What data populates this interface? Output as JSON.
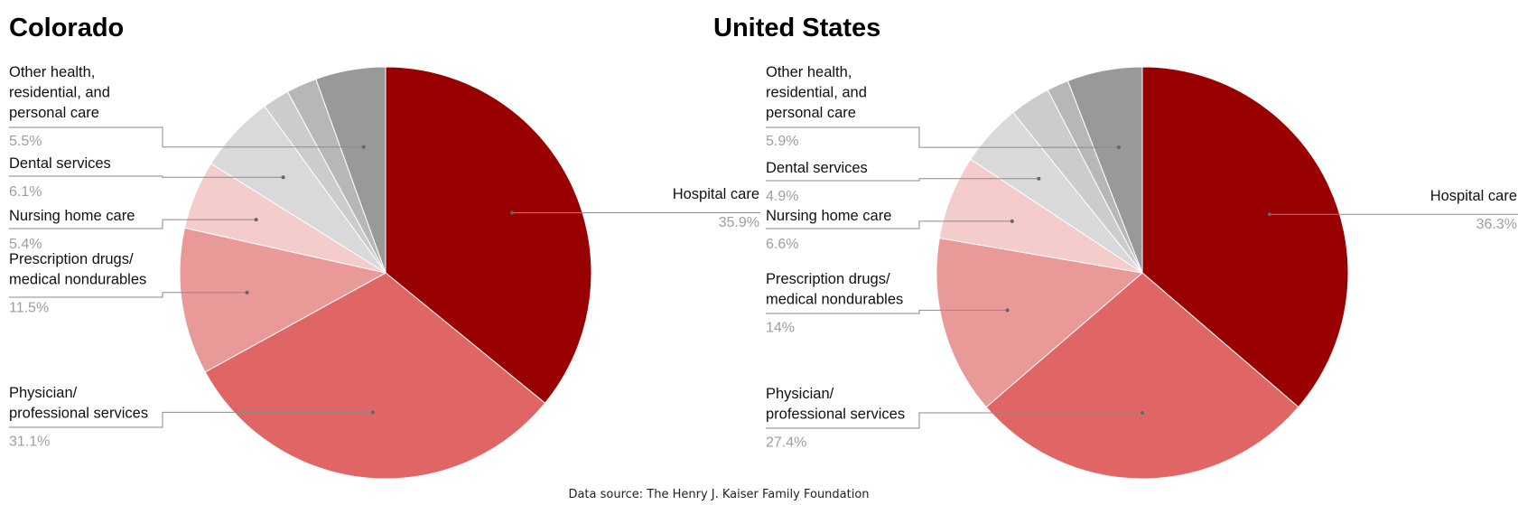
{
  "chart_data": [
    {
      "type": "pie",
      "title": "Colorado",
      "slices": [
        {
          "label": "Hospital care",
          "value": 35.9,
          "value_label": "35.9%",
          "color": "#990000"
        },
        {
          "label": "Physician/ professional services",
          "value": 31.1,
          "value_label": "31.1%",
          "color": "#e06666"
        },
        {
          "label": "Prescription drugs/ medical nondurables",
          "value": 11.5,
          "value_label": "11.5%",
          "color": "#ea9999"
        },
        {
          "label": "Nursing home care",
          "value": 5.4,
          "value_label": "5.4%",
          "color": "#f4cccc"
        },
        {
          "label": "Dental services",
          "value": 6.1,
          "value_label": "6.1%",
          "color": "#d9d9d9"
        },
        {
          "label": "",
          "value": 2.1,
          "color": "#cccccc"
        },
        {
          "label": "",
          "value": 2.4,
          "color": "#b7b7b7"
        },
        {
          "label": "Other health, residential, and personal care",
          "value": 5.5,
          "value_label": "5.5%",
          "color": "#999999"
        }
      ]
    },
    {
      "type": "pie",
      "title": "United States",
      "slices": [
        {
          "label": "Hospital care",
          "value": 36.3,
          "value_label": "36.3%",
          "color": "#990000"
        },
        {
          "label": "Physician/ professional services",
          "value": 27.4,
          "value_label": "27.4%",
          "color": "#e06666"
        },
        {
          "label": "Prescription drugs/ medical nondurables",
          "value": 14,
          "value_label": "14%",
          "color": "#ea9999"
        },
        {
          "label": "Nursing home care",
          "value": 6.6,
          "value_label": "6.6%",
          "color": "#f4cccc"
        },
        {
          "label": "Dental services",
          "value": 4.9,
          "value_label": "4.9%",
          "color": "#d9d9d9"
        },
        {
          "label": "",
          "value": 3.2,
          "color": "#cccccc"
        },
        {
          "label": "",
          "value": 1.7,
          "color": "#b7b7b7"
        },
        {
          "label": "Other health, residential, and personal care",
          "value": 5.9,
          "value_label": "5.9%",
          "color": "#999999"
        }
      ]
    }
  ],
  "source": "Data source: The Henry J. Kaiser Family Foundation"
}
